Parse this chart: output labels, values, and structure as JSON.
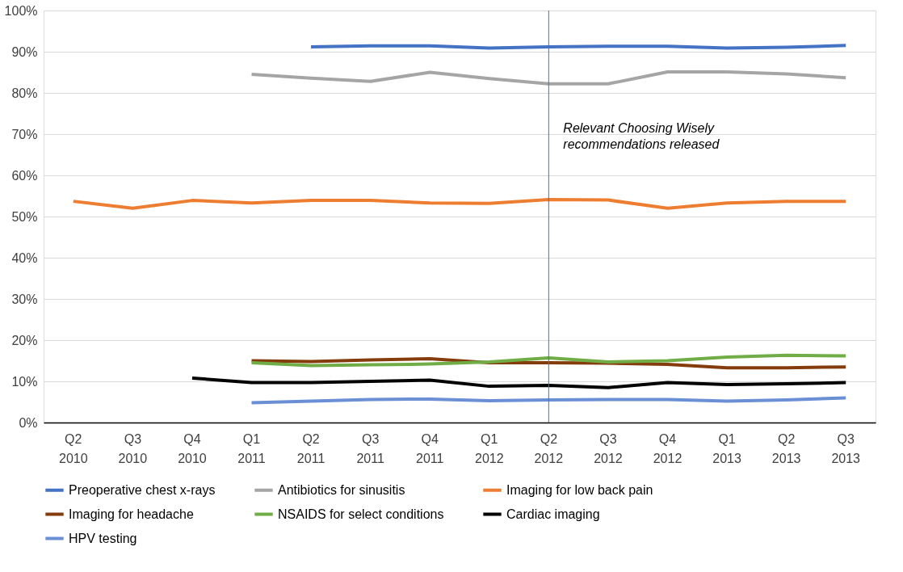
{
  "chart_data": {
    "type": "line",
    "categories": [
      "Q2 2010",
      "Q3 2010",
      "Q4 2010",
      "Q1 2011",
      "Q2 2011",
      "Q3 2011",
      "Q4 2011",
      "Q1 2012",
      "Q2 2012",
      "Q3 2012",
      "Q4 2012",
      "Q1 2013",
      "Q2 2013",
      "Q3 2013"
    ],
    "series": [
      {
        "name": "Preoperative chest x-rays",
        "color": "#4472c4",
        "values": [
          null,
          null,
          null,
          null,
          91.2,
          91.4,
          91.4,
          90.9,
          91.2,
          91.3,
          91.3,
          90.9,
          91.1,
          91.5
        ]
      },
      {
        "name": "Antibiotics for sinusitis",
        "color": "#a5a5a5",
        "values": [
          null,
          null,
          null,
          84.5,
          83.6,
          82.8,
          85.0,
          83.5,
          82.2,
          82.2,
          85.1,
          85.1,
          84.6,
          83.7
        ]
      },
      {
        "name": "Imaging for low back pain",
        "color": "#ed7d31",
        "values": [
          53.7,
          52.0,
          53.9,
          53.3,
          53.9,
          53.9,
          53.3,
          53.2,
          54.1,
          54.0,
          52.0,
          53.3,
          53.7,
          53.7
        ]
      },
      {
        "name": "Imaging for headache",
        "color": "#843c0c",
        "values": [
          null,
          null,
          null,
          15.0,
          14.8,
          15.2,
          15.5,
          14.5,
          14.5,
          14.4,
          14.1,
          13.3,
          13.3,
          13.5
        ]
      },
      {
        "name": "NSAIDS for select conditions",
        "color": "#70ad47",
        "values": [
          null,
          null,
          null,
          14.5,
          13.8,
          14.0,
          14.2,
          14.7,
          15.7,
          14.7,
          15.0,
          15.9,
          16.3,
          16.2
        ]
      },
      {
        "name": "Cardiac imaging",
        "color": "#000000",
        "values": [
          null,
          null,
          10.8,
          9.7,
          9.7,
          10.0,
          10.3,
          8.8,
          9.0,
          8.5,
          9.7,
          9.2,
          9.4,
          9.7
        ]
      },
      {
        "name": "HPV testing",
        "color": "#6a8fd4",
        "values": [
          null,
          null,
          null,
          4.8,
          5.2,
          5.6,
          5.7,
          5.3,
          5.5,
          5.6,
          5.6,
          5.2,
          5.5,
          6.0
        ]
      }
    ],
    "ylim": [
      0,
      100
    ],
    "yticks": [
      {
        "value": 0,
        "label": "0%"
      },
      {
        "value": 10,
        "label": "10%"
      },
      {
        "value": 20,
        "label": "20%"
      },
      {
        "value": 30,
        "label": "30%"
      },
      {
        "value": 40,
        "label": "40%"
      },
      {
        "value": 50,
        "label": "50%"
      },
      {
        "value": 60,
        "label": "60%"
      },
      {
        "value": 70,
        "label": "70%"
      },
      {
        "value": 80,
        "label": "80%"
      },
      {
        "value": 90,
        "label": "90%"
      },
      {
        "value": 100,
        "label": "100%"
      }
    ],
    "ref_lines": [
      {
        "axis": "x",
        "value": "Q2 2012",
        "label": "Relevant Choosing Wisely recommendations released",
        "color": "#4472c4"
      }
    ],
    "grid": "y",
    "legend": "bottom",
    "marker": "none",
    "line_style": "solid"
  }
}
